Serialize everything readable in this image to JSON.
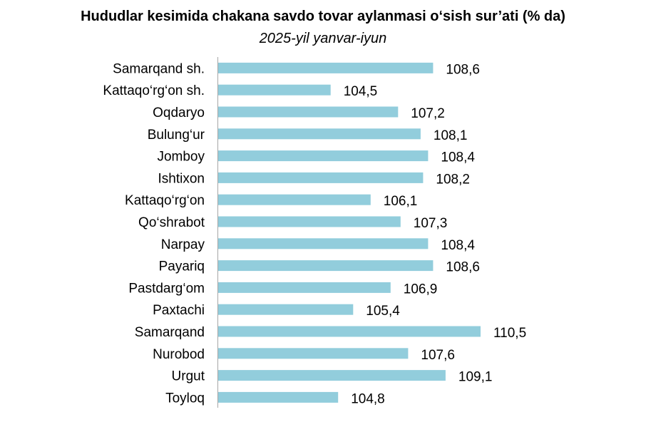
{
  "chart_data": {
    "type": "bar",
    "orientation": "horizontal",
    "title": "Hududlar kesimida chakana savdo tovar aylanmasi o‘sish sur’ati (% da)",
    "subtitle": "2025-yil yanvar-iyun",
    "categories": [
      "Samarqand sh.",
      "Kattaqo‘rg‘on sh.",
      "Oqdaryo",
      "Bulung‘ur",
      "Jomboy",
      "Ishtixon",
      "Kattaqo‘rg‘on",
      "Qo‘shrabot",
      "Narpay",
      "Payariq",
      "Pastdarg‘om",
      "Paxtachi",
      "Samarqand",
      "Nurobod",
      "Urgut",
      "Toyloq"
    ],
    "values": [
      108.6,
      104.5,
      107.2,
      108.1,
      108.4,
      108.2,
      106.1,
      107.3,
      108.4,
      108.6,
      106.9,
      105.4,
      110.5,
      107.6,
      109.1,
      104.8
    ],
    "value_labels": [
      "108,6",
      "104,5",
      "107,2",
      "108,1",
      "108,4",
      "108,2",
      "106,1",
      "107,3",
      "108,4",
      "108,6",
      "106,9",
      "105,4",
      "110,5",
      "107,6",
      "109,1",
      "104,8"
    ],
    "xlim": [
      100,
      111.3
    ],
    "bar_color": "#92cddc",
    "grid": false,
    "legend": "none"
  }
}
